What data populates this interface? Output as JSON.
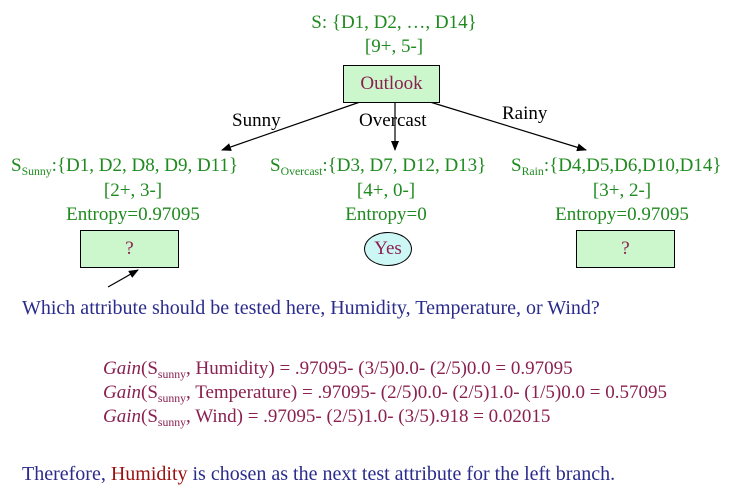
{
  "root": {
    "set_label": "S: {D1, D2, …, D14}",
    "counts": "[9+, 5-]",
    "attribute": "Outlook"
  },
  "branches": [
    {
      "edge_label": "Sunny",
      "set_symbol": "S",
      "set_sub": "Sunny",
      "set_members": ":{D1, D2, D8, D9, D11}",
      "counts": "[2+, 3-]",
      "entropy": "Entropy=0.97095",
      "child_text": "?"
    },
    {
      "edge_label": "Overcast",
      "set_symbol": "S",
      "set_sub": "Overcast",
      "set_members": ":{D3, D7, D12, D13}",
      "counts": "[4+, 0-]",
      "entropy": "Entropy=0",
      "child_text": "Yes"
    },
    {
      "edge_label": "Rainy",
      "set_symbol": "S",
      "set_sub": "Rain",
      "set_members": ":{D4,D5,D6,D10,D14}",
      "counts": "[3+, 2-]",
      "entropy": "Entropy=0.97095",
      "child_text": "?"
    }
  ],
  "question": "Which attribute should be tested here, Humidity, Temperature,  or Wind?",
  "gains": [
    {
      "gain": "Gain",
      "open": "(S",
      "sub": "sunny",
      "rest": ", Humidity) = .97095- (3/5)0.0- (2/5)0.0 = 0.97095"
    },
    {
      "gain": "Gain",
      "open": "(S",
      "sub": "sunny",
      "rest": ", Temperature) = .97095- (2/5)0.0- (2/5)1.0- (1/5)0.0 = 0.57095"
    },
    {
      "gain": "Gain",
      "open": "(S",
      "sub": "sunny",
      "rest": ", Wind) = .97095- (2/5)1.0- (3/5).918 = 0.02015"
    }
  ],
  "conclusion": {
    "prefix": "Therefore, ",
    "attribute": "Humidity",
    "suffix": " is chosen as the next test attribute for the left branch."
  }
}
